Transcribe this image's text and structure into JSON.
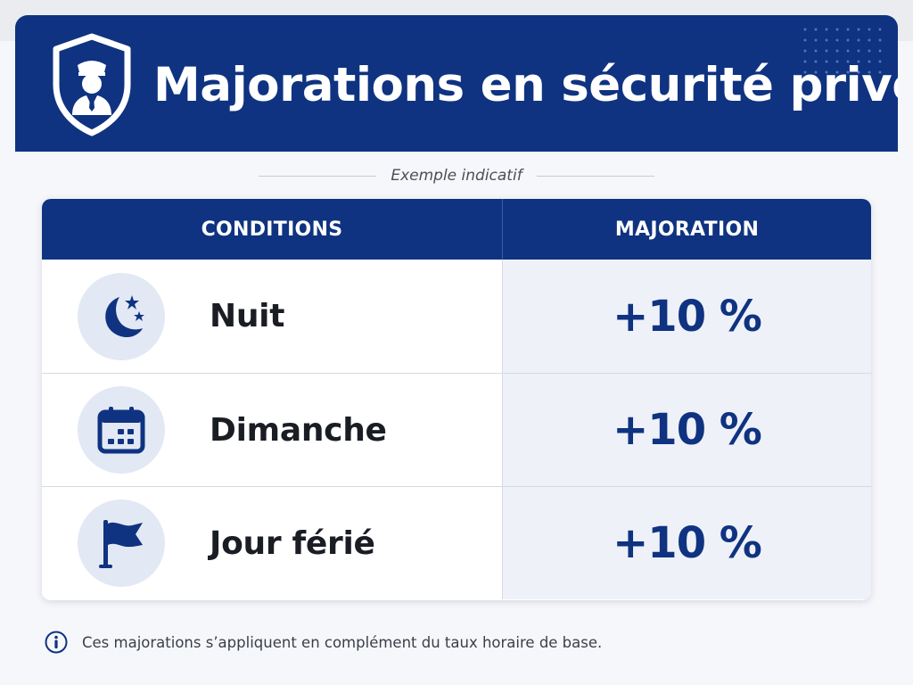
{
  "header": {
    "title": "Majorations en sécurité privée",
    "icon": "security-guard-shield-icon"
  },
  "subtitle": "Exemple indicatif",
  "table": {
    "columns": [
      "CONDITIONS",
      "MAJORATION"
    ],
    "rows": [
      {
        "condition": "Nuit",
        "majoration": "+10 %",
        "icon": "moon-stars-icon"
      },
      {
        "condition": "Dimanche",
        "majoration": "+10 %",
        "icon": "calendar-icon"
      },
      {
        "condition": "Jour férié",
        "majoration": "+10 %",
        "icon": "flag-icon"
      }
    ]
  },
  "footnote": {
    "icon": "info-icon",
    "text": "Ces majorations s’appliquent en complément du taux horaire de base."
  },
  "colors": {
    "primary": "#0f3381",
    "value_cell_bg": "#eef1f8",
    "icon_circle_bg": "#e2e8f4"
  }
}
